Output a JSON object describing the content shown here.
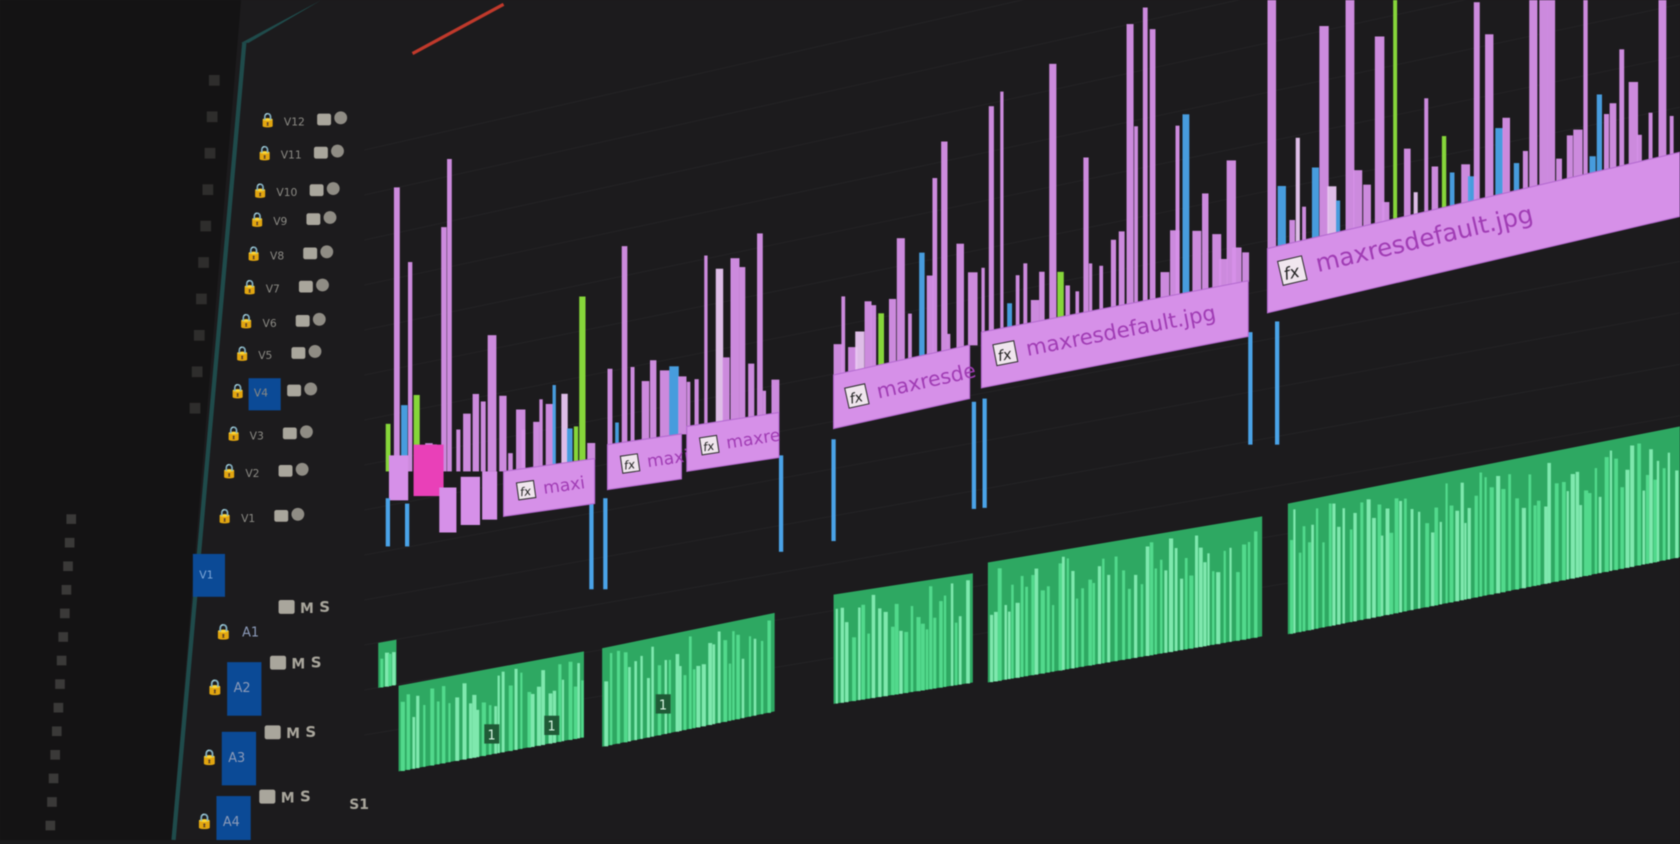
{
  "app": "video-editor-timeline",
  "colors": {
    "background": "#1c1b1d",
    "panel": "#141314",
    "video_clip": "#d690e8",
    "video_clip_label": "#a03cb4",
    "audio_clip": "#52d98c",
    "audio_clip_dark": "#2ea862",
    "track_target": "#0b4a96",
    "playhead_rule": "#c0392b",
    "accent_blue": "#4aa3e8",
    "accent_green": "#8ce03c"
  },
  "video_tracks": [
    {
      "label": "V12"
    },
    {
      "label": "V11"
    },
    {
      "label": "V10"
    },
    {
      "label": "V9"
    },
    {
      "label": "V8"
    },
    {
      "label": "V7"
    },
    {
      "label": "V6"
    },
    {
      "label": "V5"
    },
    {
      "label": "V4",
      "targeted": true
    },
    {
      "label": "V3"
    },
    {
      "label": "V2"
    },
    {
      "label": "V1",
      "source": "V1"
    }
  ],
  "audio_tracks": [
    {
      "label": "A1",
      "m": "M",
      "s": "S"
    },
    {
      "label": "A2",
      "m": "M",
      "s": "S",
      "targeted": true
    },
    {
      "label": "A3",
      "m": "M",
      "s": "S",
      "targeted": true
    },
    {
      "label": "A4",
      "m": "M",
      "s": "S",
      "targeted": true
    }
  ],
  "submix_label": "S1",
  "video_clips": [
    {
      "fx": "fx",
      "name": "maxi"
    },
    {
      "fx": "fx",
      "name": "maxi"
    },
    {
      "fx": "fx",
      "name": "maxre"
    },
    {
      "fx": "fx",
      "name": "maxresde"
    },
    {
      "fx": "fx",
      "name": "maxresdefault.jpg"
    },
    {
      "fx": "fx",
      "name": "maxresdefault.jpg"
    }
  ],
  "audio_clip_channel_labels": [
    "1",
    "1",
    "1"
  ]
}
